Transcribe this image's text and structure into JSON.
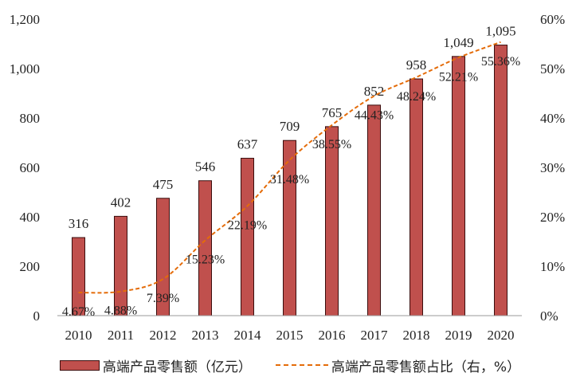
{
  "chart_data": {
    "type": "bar",
    "categories": [
      "2010",
      "2011",
      "2012",
      "2013",
      "2014",
      "2015",
      "2016",
      "2017",
      "2018",
      "2019",
      "2020"
    ],
    "series": [
      {
        "name": "高端产品零售额（亿元）",
        "type": "bar",
        "axis": "left",
        "color": "#c0504d",
        "values": [
          316,
          402,
          475,
          546,
          637,
          709,
          765,
          852,
          958,
          1049,
          1095
        ],
        "labels": [
          "316",
          "402",
          "475",
          "546",
          "637",
          "709",
          "765",
          "852",
          "958",
          "1,049",
          "1,095"
        ]
      },
      {
        "name": "高端产品零售额占比（右，%）",
        "type": "line",
        "axis": "right",
        "color": "#e46c0a",
        "style": "dashed",
        "values": [
          4.67,
          4.88,
          7.39,
          15.23,
          22.19,
          31.48,
          38.55,
          44.43,
          48.24,
          52.21,
          55.36
        ],
        "labels": [
          "4.67%",
          "4.88%",
          "7.39%",
          "15.23%",
          "22.19%",
          "31.48%",
          "38.55%",
          "44.43%",
          "48.24%",
          "52.21%",
          "55.36%"
        ]
      }
    ],
    "y_left": {
      "ylim": [
        0,
        1200
      ],
      "ticks": [
        0,
        200,
        400,
        600,
        800,
        1000,
        1200
      ],
      "tick_labels": [
        "0",
        "200",
        "400",
        "600",
        "800",
        "1,000",
        "1,200"
      ]
    },
    "y_right": {
      "ylim": [
        0,
        60
      ],
      "ticks": [
        0,
        10,
        20,
        30,
        40,
        50,
        60
      ],
      "tick_labels": [
        "0%",
        "10%",
        "20%",
        "30%",
        "40%",
        "50%",
        "60%"
      ]
    },
    "grid": false,
    "legend": "bottom"
  }
}
